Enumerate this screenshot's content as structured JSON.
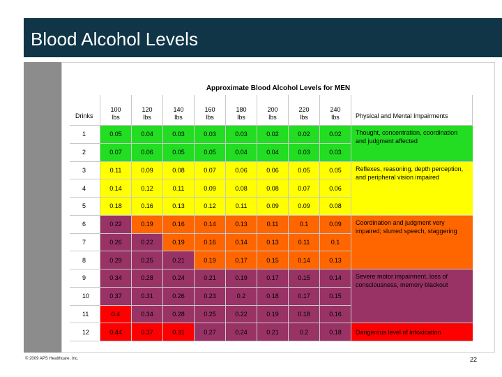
{
  "slide": {
    "title": "Blood Alcohol Levels",
    "copyright": "© 2009 APS Healthcare, Inc.",
    "page_number": "22"
  },
  "table": {
    "title": "Approximate Blood Alcohol Levels for MEN",
    "drinks_header": "Drinks",
    "impairment_header": "Physical and Mental Impairments",
    "weights": [
      "100\nlbs",
      "120\nlbs",
      "140\nlbs",
      "160\nlbs",
      "180\nlbs",
      "200\nlbs",
      "220\nlbs",
      "240\nlbs"
    ],
    "rows": [
      {
        "drinks": "1",
        "values": [
          "0.05",
          "0.04",
          "0.03",
          "0.03",
          "0.03",
          "0.02",
          "0.02",
          "0.02"
        ]
      },
      {
        "drinks": "2",
        "values": [
          "0.07",
          "0.06",
          "0.05",
          "0.05",
          "0.04",
          "0.04",
          "0.03",
          "0.03"
        ]
      },
      {
        "drinks": "3",
        "values": [
          "0.11",
          "0.09",
          "0.08",
          "0.07",
          "0.06",
          "0.06",
          "0.05",
          "0.05"
        ]
      },
      {
        "drinks": "4",
        "values": [
          "0.14",
          "0.12",
          "0.11",
          "0.09",
          "0.08",
          "0.08",
          "0.07",
          "0.06"
        ]
      },
      {
        "drinks": "5",
        "values": [
          "0.18",
          "0.16",
          "0.13",
          "0.12",
          "0.11",
          "0.09",
          "0.09",
          "0.08"
        ]
      },
      {
        "drinks": "6",
        "values": [
          "0.22",
          "0.19",
          "0.16",
          "0.14",
          "0.13",
          "0.11",
          "0.1",
          "0.09"
        ]
      },
      {
        "drinks": "7",
        "values": [
          "0.26",
          "0.22",
          "0.19",
          "0.16",
          "0.14",
          "0.13",
          "0.11",
          "0.1"
        ]
      },
      {
        "drinks": "8",
        "values": [
          "0.29",
          "0.25",
          "0.21",
          "0.19",
          "0.17",
          "0.15",
          "0.14",
          "0.13"
        ]
      },
      {
        "drinks": "9",
        "values": [
          "0.34",
          "0.28",
          "0.24",
          "0.21",
          "0.19",
          "0.17",
          "0.15",
          "0.14"
        ]
      },
      {
        "drinks": "10",
        "values": [
          "0.37",
          "0.31",
          "0.26",
          "0.23",
          "0.2",
          "0.18",
          "0.17",
          "0.15"
        ]
      },
      {
        "drinks": "11",
        "values": [
          "0.4",
          "0.34",
          "0.28",
          "0.25",
          "0.22",
          "0.19",
          "0.18",
          "0.16"
        ]
      },
      {
        "drinks": "12",
        "values": [
          "0.44",
          "0.37",
          "0.31",
          "0.27",
          "0.24",
          "0.21",
          "0.2",
          "0.18"
        ]
      }
    ],
    "impairments": [
      {
        "text": "Thought, concentration, coordination and judgment affected",
        "row_start": 0,
        "row_span": 2,
        "color": "#22dd22"
      },
      {
        "text": "Reflexes, reasoning, depth perception, and peripheral vision impaired",
        "row_start": 2,
        "row_span": 3,
        "color": "#ffff00"
      },
      {
        "text": "Coordination and judgment very impaired; slurred speech, staggering",
        "row_start": 5,
        "row_span": 3,
        "color": "#ff6600"
      },
      {
        "text": "Severe motor impairment, loss of consciousness, memory blackout",
        "row_start": 8,
        "row_span": 3,
        "color": "#993366"
      },
      {
        "text": "Dangerous level of intoxication",
        "row_start": 11,
        "row_span": 1,
        "color": "#ff0000"
      }
    ],
    "level_colors": {
      "green": "#22dd22",
      "yellow": "#ffff00",
      "orange": "#ff6600",
      "purple": "#993366",
      "red": "#ff0000"
    },
    "cell_color_map": [
      [
        "green",
        "green",
        "green",
        "green",
        "green",
        "green",
        "green",
        "green"
      ],
      [
        "green",
        "green",
        "green",
        "green",
        "green",
        "green",
        "green",
        "green"
      ],
      [
        "yellow",
        "yellow",
        "yellow",
        "yellow",
        "yellow",
        "yellow",
        "yellow",
        "yellow"
      ],
      [
        "yellow",
        "yellow",
        "yellow",
        "yellow",
        "yellow",
        "yellow",
        "yellow",
        "yellow"
      ],
      [
        "yellow",
        "yellow",
        "yellow",
        "yellow",
        "yellow",
        "yellow",
        "yellow",
        "yellow"
      ],
      [
        "purple",
        "orange",
        "orange",
        "orange",
        "orange",
        "orange",
        "orange",
        "orange"
      ],
      [
        "purple",
        "purple",
        "orange",
        "orange",
        "orange",
        "orange",
        "orange",
        "orange"
      ],
      [
        "purple",
        "purple",
        "purple",
        "orange",
        "orange",
        "orange",
        "orange",
        "orange"
      ],
      [
        "purple",
        "purple",
        "purple",
        "purple",
        "purple",
        "purple",
        "purple",
        "purple"
      ],
      [
        "purple",
        "purple",
        "purple",
        "purple",
        "purple",
        "purple",
        "purple",
        "purple"
      ],
      [
        "red",
        "purple",
        "purple",
        "purple",
        "purple",
        "purple",
        "purple",
        "purple"
      ],
      [
        "red",
        "red",
        "red",
        "purple",
        "purple",
        "purple",
        "purple",
        "purple"
      ]
    ]
  }
}
